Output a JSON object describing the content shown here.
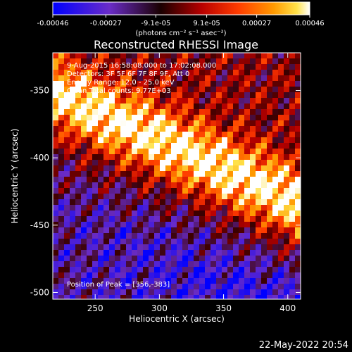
{
  "colorbar": {
    "ticks": [
      "-0.00046",
      "-0.00027",
      "-9.1e-05",
      "9.1e-05",
      "0.00027",
      "0.00046"
    ],
    "tick_values": [
      -0.00046,
      -0.00027,
      -9.1e-05,
      9.1e-05,
      0.00027,
      0.00046
    ],
    "range": [
      -0.00046,
      0.00046
    ],
    "unit_label": "(photons cm⁻² s⁻¹ asec⁻²)",
    "colors": [
      "#0000ff",
      "#6a2cc8",
      "#3a0000",
      "#b80000",
      "#ff3b00",
      "#ff9a00",
      "#ffe24a",
      "#ffffff"
    ]
  },
  "chart_data": {
    "type": "heatmap",
    "title": "Reconstructed RHESSI Image",
    "xlabel": "Heliocentric X (arcsec)",
    "ylabel": "Heliocentric Y (arcsec)",
    "xlim": [
      217,
      410
    ],
    "ylim": [
      -505,
      -322
    ],
    "x_ticks": [
      250,
      300,
      350,
      400
    ],
    "y_ticks": [
      -350,
      -400,
      -450,
      -500
    ],
    "annotations": [
      "9-Aug-2015 16:58:08.000 to 17:02:08.000",
      "Detectors: 3F 5F 6F 7F 8F 9F, Att 0",
      "Energy Range: 12.0 - 25.0 keV",
      "Clean     Total counts: 9.77E+03"
    ],
    "peak_label": "Position of Peak = [356,-383]",
    "peak": [
      356,
      -383
    ],
    "description_of_field": "bright emission band running from upper-left toward right edge; weak/negative region in lower right"
  },
  "footer": {
    "timestamp": "22-May-2022 20:54"
  }
}
